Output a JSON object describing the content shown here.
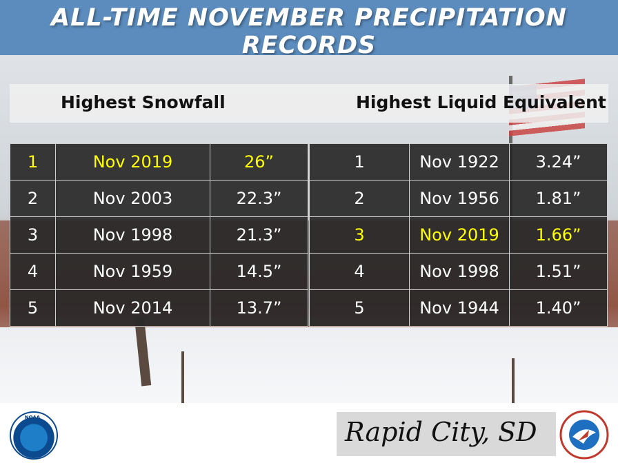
{
  "title": "ALL-TIME NOVEMBER PRECIPITATION RECORDS",
  "headings": {
    "snowfall": "Highest Snowfall",
    "liquid": "Highest Liquid Equivalent"
  },
  "snowfall": [
    {
      "rank": "1",
      "month": "Nov 2019",
      "value": "26”"
    },
    {
      "rank": "2",
      "month": "Nov 2003",
      "value": "22.3”"
    },
    {
      "rank": "3",
      "month": "Nov 1998",
      "value": "21.3”"
    },
    {
      "rank": "4",
      "month": "Nov 1959",
      "value": "14.5”"
    },
    {
      "rank": "5",
      "month": "Nov 2014",
      "value": "13.7”"
    }
  ],
  "liquid": [
    {
      "rank": "1",
      "month": "Nov 1922",
      "value": "3.24”"
    },
    {
      "rank": "2",
      "month": "Nov 1956",
      "value": "1.81”"
    },
    {
      "rank": "3",
      "month": "Nov 2019",
      "value": "1.66”"
    },
    {
      "rank": "4",
      "month": "Nov 1998",
      "value": "1.51”"
    },
    {
      "rank": "5",
      "month": "Nov 1944",
      "value": "1.40”"
    }
  ],
  "location": "Rapid City, SD",
  "logos": {
    "noaa": "NOAA",
    "nws": "NATIONAL WEATHER SERVICE"
  },
  "colors": {
    "header": "#5b8cbd",
    "highlight": "#ffff00",
    "cell_bg": "#282828"
  }
}
